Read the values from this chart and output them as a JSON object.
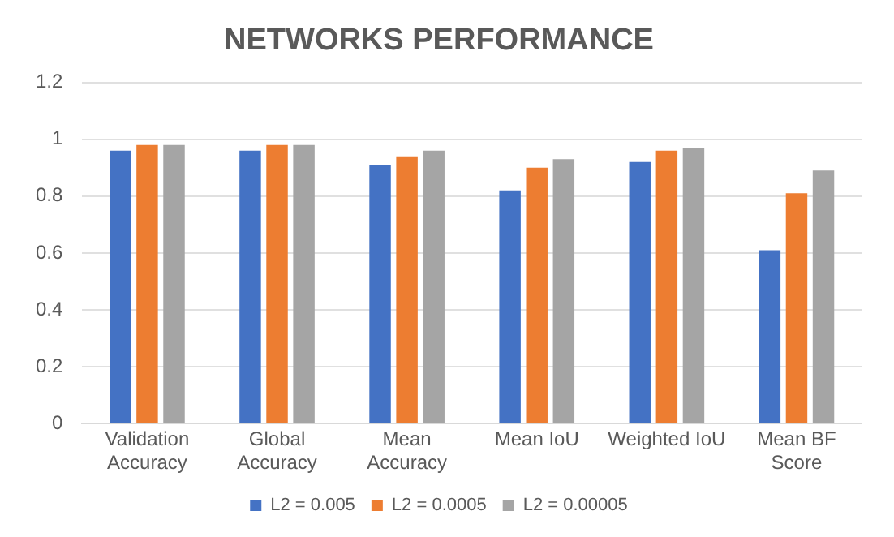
{
  "chart_data": {
    "type": "bar",
    "title": "NETWORKS PERFORMANCE",
    "categories": [
      "Validation Accuracy",
      "Global Accuracy",
      "Mean Accuracy",
      "Mean IoU",
      "Weighted IoU",
      "Mean BF Score"
    ],
    "series": [
      {
        "name": "L2 = 0.005",
        "color": "#4472c4",
        "values": [
          0.96,
          0.96,
          0.91,
          0.82,
          0.92,
          0.61
        ]
      },
      {
        "name": "L2 = 0.0005",
        "color": "#ed7d31",
        "values": [
          0.98,
          0.98,
          0.94,
          0.9,
          0.96,
          0.81
        ]
      },
      {
        "name": "L2 = 0.00005",
        "color": "#a5a5a5",
        "values": [
          0.98,
          0.98,
          0.96,
          0.93,
          0.97,
          0.89
        ]
      }
    ],
    "ylim": [
      0,
      1.2
    ],
    "yticks": [
      0,
      0.2,
      0.4,
      0.6,
      0.8,
      1,
      1.2
    ],
    "grid": "y",
    "legend": "bottom"
  }
}
